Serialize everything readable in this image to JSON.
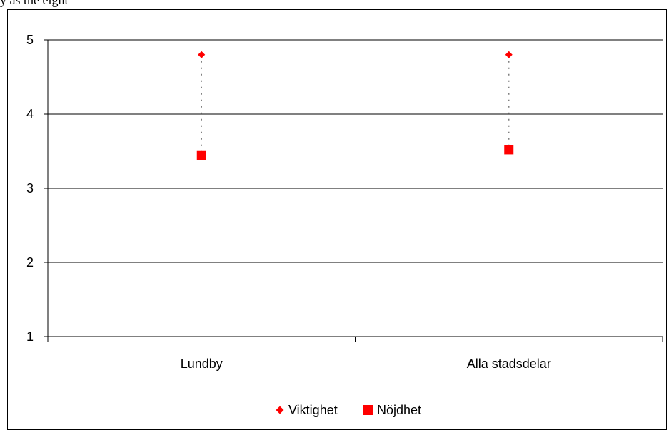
{
  "top_text": "y as the eight",
  "chart_data": {
    "type": "scatter",
    "categories": [
      "Lundby",
      "Alla stadsdelar"
    ],
    "series": [
      {
        "name": "Viktighet",
        "marker": "diamond",
        "color": "#ff0000",
        "values": [
          4.8,
          4.8
        ]
      },
      {
        "name": "Nöjdhet",
        "marker": "square",
        "color": "#ff0000",
        "values": [
          3.44,
          3.52
        ]
      }
    ],
    "connector": {
      "style": "dotted",
      "color": "#808080"
    },
    "ylim": [
      1,
      5
    ],
    "yticks": [
      "1",
      "2",
      "3",
      "4",
      "5"
    ],
    "grid": true,
    "legend_position": "bottom-center",
    "title": "",
    "xlabel": "",
    "ylabel": ""
  }
}
